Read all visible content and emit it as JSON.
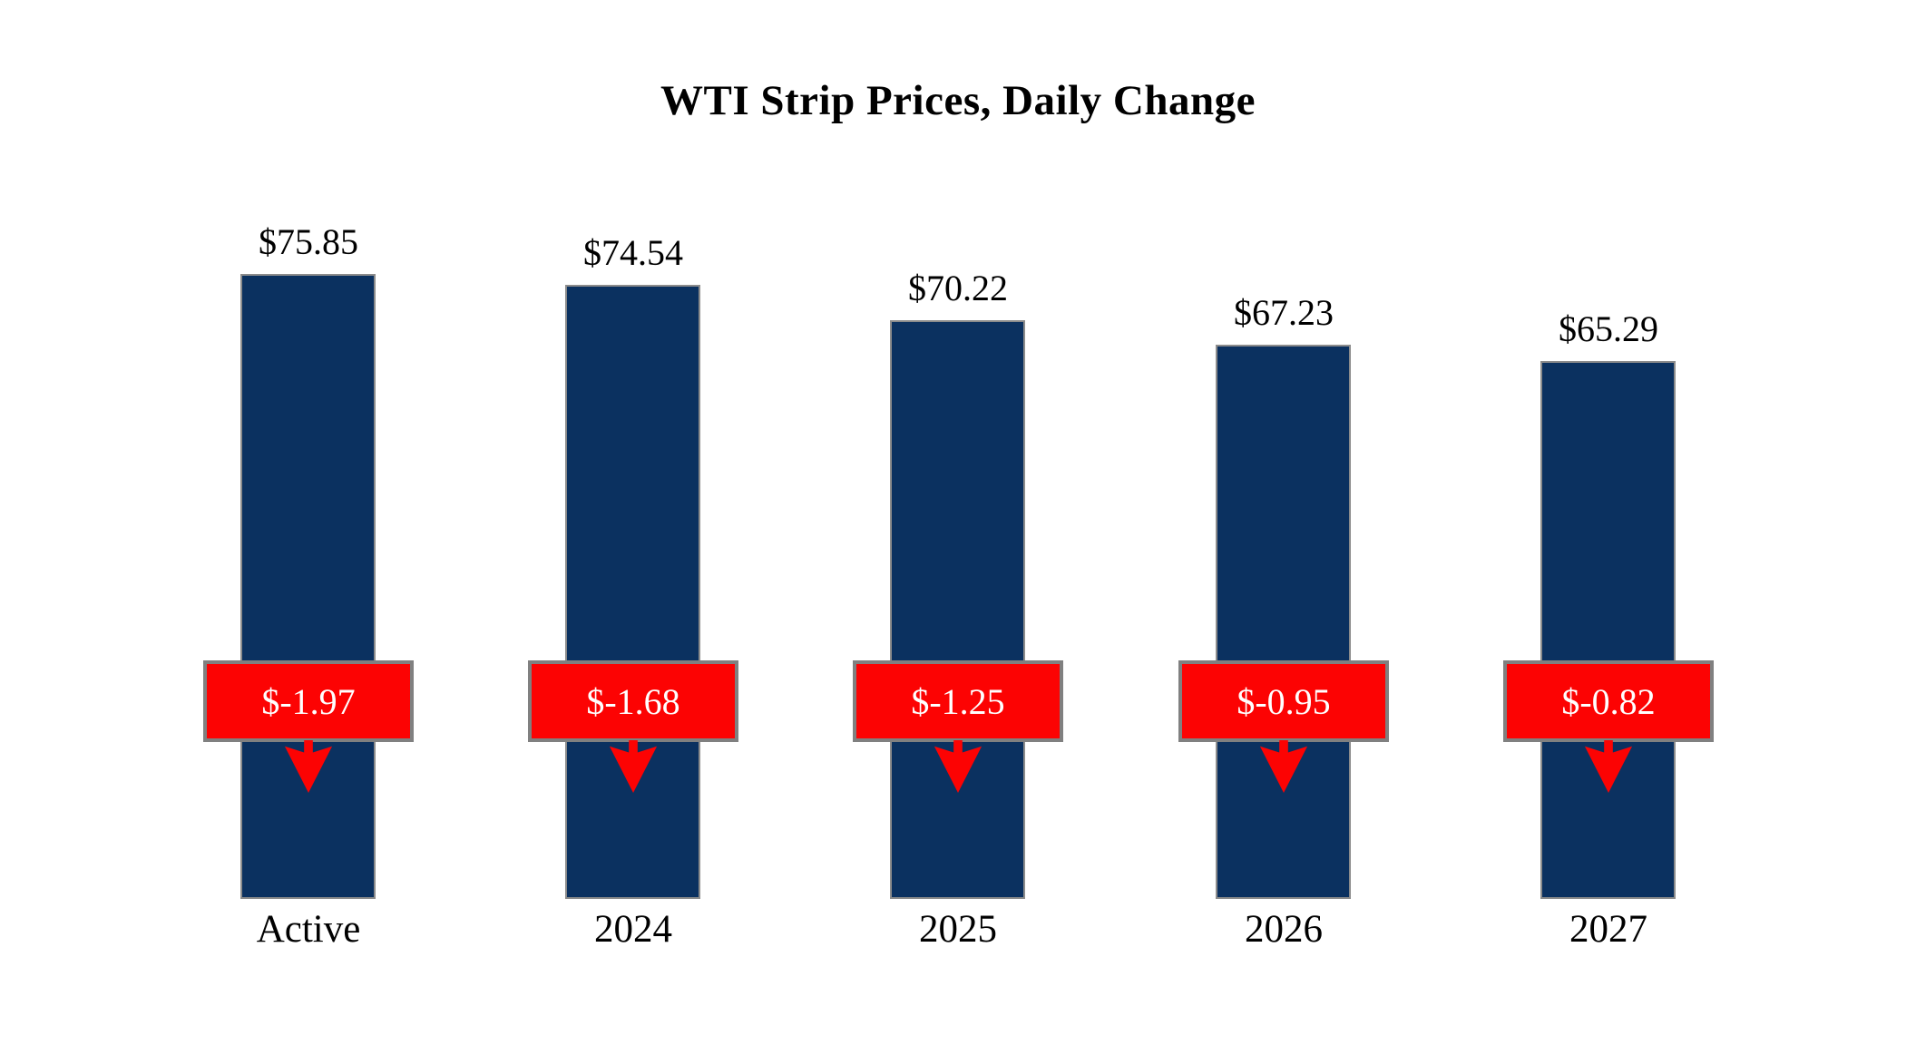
{
  "title": "WTI Strip Prices, Daily Change",
  "colors": {
    "bar_fill": "#0b3160",
    "bar_border": "#8c8c8c",
    "change_box_fill": "#fc0303",
    "change_box_border": "#808080",
    "change_text": "#ffffff",
    "label_text": "#000000",
    "background": "#ffffff"
  },
  "chart_data": {
    "type": "bar",
    "title": "WTI Strip Prices, Daily Change",
    "categories": [
      "Active",
      "2024",
      "2025",
      "2026",
      "2027"
    ],
    "series": [
      {
        "name": "Strip Price",
        "values": [
          75.85,
          74.54,
          70.22,
          67.23,
          65.29
        ]
      },
      {
        "name": "Daily Change",
        "values": [
          -1.97,
          -1.68,
          -1.25,
          -0.95,
          -0.82
        ]
      }
    ],
    "ylim": [
      0,
      80
    ],
    "grid": false,
    "axes_visible": false,
    "legend": "none",
    "columns": [
      {
        "category": "Active",
        "price": 75.85,
        "price_label": "$75.85",
        "change": -1.97,
        "change_label": "$-1.97"
      },
      {
        "category": "2024",
        "price": 74.54,
        "price_label": "$74.54",
        "change": -1.68,
        "change_label": "$-1.68"
      },
      {
        "category": "2025",
        "price": 70.22,
        "price_label": "$70.22",
        "change": -1.25,
        "change_label": "$-1.25"
      },
      {
        "category": "2026",
        "price": 67.23,
        "price_label": "$67.23",
        "change": -0.95,
        "change_label": "$-0.95"
      },
      {
        "category": "2027",
        "price": 65.29,
        "price_label": "$65.29",
        "change": -0.82,
        "change_label": "$-0.82"
      }
    ]
  }
}
